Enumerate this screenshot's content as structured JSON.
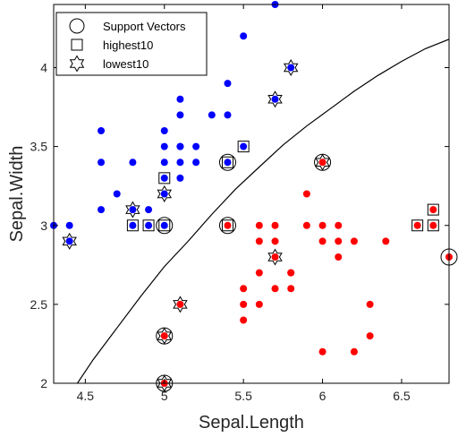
{
  "chart_data": {
    "type": "scatter",
    "xlabel": "Sepal.Length",
    "ylabel": "Sepal.Width",
    "xlim": [
      4.3,
      6.8
    ],
    "ylim": [
      2.0,
      4.4
    ],
    "xticks": [
      4.5,
      5,
      5.5,
      6,
      6.5
    ],
    "yticks": [
      2,
      2.5,
      3,
      3.5,
      4
    ],
    "xtick_labels": [
      "4.5",
      "5",
      "5.5",
      "6",
      "6.5"
    ],
    "ytick_labels": [
      "2",
      "2.5",
      "3",
      "3.5",
      "4"
    ],
    "legend": {
      "placement": "top-left",
      "entries": [
        {
          "label": "Support Vectors",
          "marker": "circle"
        },
        {
          "label": "highest10",
          "marker": "square"
        },
        {
          "label": "lowest10",
          "marker": "hexagram"
        }
      ]
    },
    "colors": {
      "blue_class": "#0000ff",
      "red_class": "#ff0000",
      "boundary": "#000000"
    },
    "series": [
      {
        "color": "blue",
        "points": [
          [
            4.3,
            3.0
          ],
          [
            4.4,
            3.0
          ],
          [
            4.4,
            2.9
          ],
          [
            4.6,
            3.6
          ],
          [
            4.6,
            3.4
          ],
          [
            4.6,
            3.1
          ],
          [
            4.7,
            3.2
          ],
          [
            4.8,
            3.4
          ],
          [
            4.8,
            3.1
          ],
          [
            4.8,
            3.0
          ],
          [
            4.9,
            3.0
          ],
          [
            4.9,
            3.1
          ],
          [
            5.0,
            3.6
          ],
          [
            5.0,
            3.4
          ],
          [
            5.0,
            3.5
          ],
          [
            5.0,
            3.2
          ],
          [
            5.0,
            3.0
          ],
          [
            5.0,
            3.3
          ],
          [
            5.1,
            3.8
          ],
          [
            5.1,
            3.7
          ],
          [
            5.1,
            3.5
          ],
          [
            5.1,
            3.4
          ],
          [
            5.1,
            3.3
          ],
          [
            5.1,
            3.5
          ],
          [
            5.2,
            3.5
          ],
          [
            5.2,
            3.4
          ],
          [
            5.3,
            3.7
          ],
          [
            5.4,
            3.9
          ],
          [
            5.4,
            3.7
          ],
          [
            5.4,
            3.4
          ],
          [
            5.5,
            4.2
          ],
          [
            5.5,
            3.5
          ],
          [
            5.7,
            4.4
          ],
          [
            5.7,
            3.8
          ],
          [
            5.8,
            4.0
          ]
        ]
      },
      {
        "color": "red",
        "points": [
          [
            5.0,
            2.3
          ],
          [
            5.0,
            2.0
          ],
          [
            5.1,
            2.5
          ],
          [
            5.4,
            3.0
          ],
          [
            5.5,
            2.6
          ],
          [
            5.5,
            2.5
          ],
          [
            5.5,
            2.4
          ],
          [
            5.6,
            3.0
          ],
          [
            5.6,
            2.9
          ],
          [
            5.6,
            2.7
          ],
          [
            5.6,
            2.5
          ],
          [
            5.7,
            3.0
          ],
          [
            5.7,
            2.9
          ],
          [
            5.7,
            2.8
          ],
          [
            5.7,
            2.6
          ],
          [
            5.8,
            2.7
          ],
          [
            5.8,
            2.6
          ],
          [
            5.9,
            3.2
          ],
          [
            5.9,
            3.0
          ],
          [
            6.0,
            3.4
          ],
          [
            6.0,
            2.9
          ],
          [
            6.0,
            2.2
          ],
          [
            6.1,
            3.0
          ],
          [
            6.1,
            2.9
          ],
          [
            6.1,
            2.8
          ],
          [
            6.2,
            2.9
          ],
          [
            6.2,
            2.2
          ],
          [
            6.3,
            2.5
          ],
          [
            6.3,
            2.3
          ],
          [
            6.4,
            2.9
          ],
          [
            6.6,
            3.0
          ],
          [
            6.7,
            3.1
          ],
          [
            6.7,
            3.0
          ],
          [
            6.8,
            2.8
          ],
          [
            6.0,
            3.0
          ],
          [
            5.8,
            2.7
          ]
        ]
      }
    ],
    "support_vectors": [
      [
        5.0,
        3.0
      ],
      [
        5.4,
        3.4
      ],
      [
        5.4,
        3.0
      ],
      [
        6.0,
        3.4
      ],
      [
        6.8,
        2.8
      ],
      [
        5.0,
        2.3
      ],
      [
        5.0,
        2.0
      ]
    ],
    "highest10": [
      [
        4.8,
        3.0
      ],
      [
        4.9,
        3.0
      ],
      [
        5.0,
        3.0
      ],
      [
        5.0,
        3.3
      ],
      [
        5.4,
        3.4
      ],
      [
        5.5,
        3.5
      ],
      [
        5.4,
        3.0
      ],
      [
        6.6,
        3.0
      ],
      [
        6.7,
        3.1
      ],
      [
        6.7,
        3.0
      ]
    ],
    "lowest10": [
      [
        4.4,
        2.9
      ],
      [
        4.8,
        3.1
      ],
      [
        5.0,
        3.2
      ],
      [
        5.7,
        3.8
      ],
      [
        5.8,
        4.0
      ],
      [
        6.0,
        3.4
      ],
      [
        5.7,
        2.8
      ],
      [
        5.1,
        2.5
      ],
      [
        5.0,
        2.3
      ],
      [
        5.0,
        2.0
      ]
    ],
    "decision_boundary": [
      [
        4.45,
        2.0
      ],
      [
        4.55,
        2.15
      ],
      [
        4.7,
        2.35
      ],
      [
        4.85,
        2.55
      ],
      [
        5.0,
        2.74
      ],
      [
        5.15,
        2.9
      ],
      [
        5.3,
        3.07
      ],
      [
        5.45,
        3.23
      ],
      [
        5.6,
        3.37
      ],
      [
        5.75,
        3.51
      ],
      [
        5.9,
        3.63
      ],
      [
        6.05,
        3.74
      ],
      [
        6.2,
        3.85
      ],
      [
        6.35,
        3.95
      ],
      [
        6.5,
        4.04
      ],
      [
        6.65,
        4.12
      ],
      [
        6.8,
        4.18
      ]
    ]
  }
}
